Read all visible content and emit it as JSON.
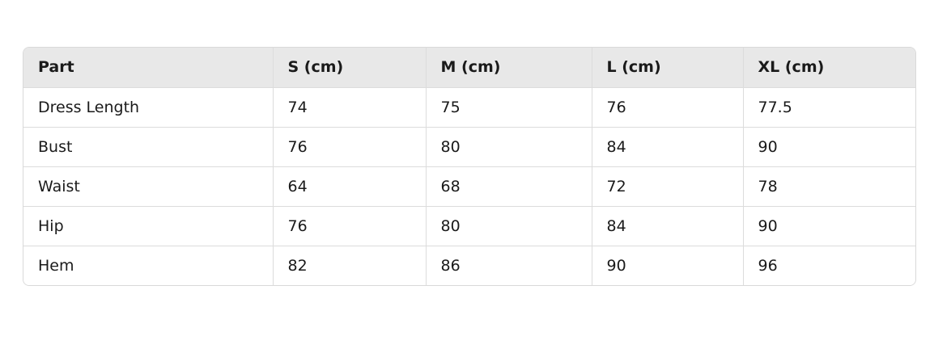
{
  "table": {
    "headers": [
      "Part",
      "S (cm)",
      "M (cm)",
      "L (cm)",
      "XL (cm)"
    ],
    "rows": [
      [
        "Dress Length",
        "74",
        "75",
        "76",
        "77.5"
      ],
      [
        "Bust",
        "76",
        "80",
        "84",
        "90"
      ],
      [
        "Waist",
        "64",
        "68",
        "72",
        "78"
      ],
      [
        "Hip",
        "76",
        "80",
        "84",
        "90"
      ],
      [
        "Hem",
        "82",
        "86",
        "90",
        "96"
      ]
    ]
  }
}
